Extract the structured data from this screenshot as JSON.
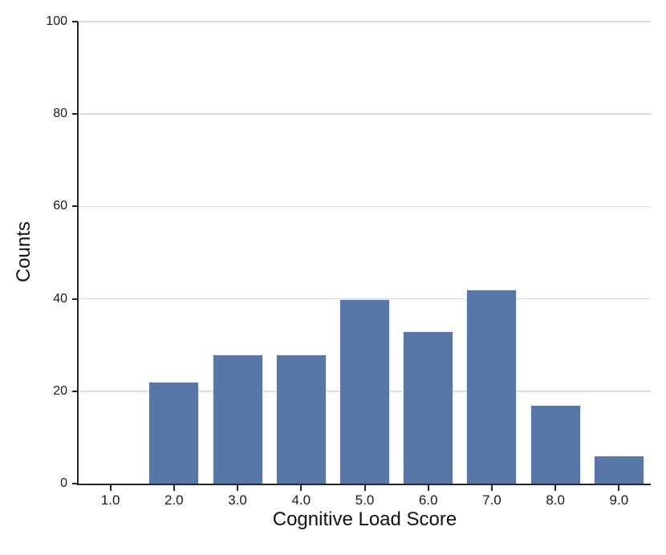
{
  "chart_data": {
    "type": "bar",
    "categories": [
      "1.0",
      "2.0",
      "3.0",
      "4.0",
      "5.0",
      "6.0",
      "7.0",
      "8.0",
      "9.0"
    ],
    "values": [
      0,
      22,
      28,
      28,
      40,
      33,
      42,
      17,
      6
    ],
    "title": "",
    "xlabel": "Cognitive Load Score",
    "ylabel": "Counts",
    "ylim": [
      0,
      100
    ],
    "yticks": [
      0,
      20,
      40,
      60,
      80,
      100
    ],
    "grid": true,
    "legend": "none",
    "colors": {
      "bar_fill": "#5876A6",
      "bar_edge": "#E7ECF5",
      "axis_spine": "#262626",
      "gridline": "#DCDCDC",
      "text": "#1a1a1a"
    }
  }
}
